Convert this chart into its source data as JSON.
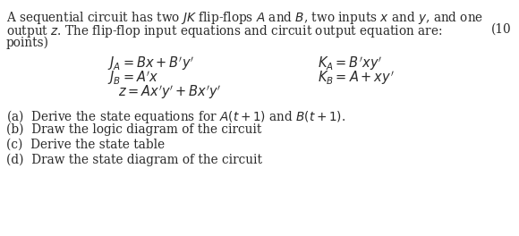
{
  "bg_color": "#ffffff",
  "text_color": "#2a2a2a",
  "intro_line1": "A sequential circuit has two $JK$ flip-flops $A$ and $B$, two inputs $x$ and $y$, and one",
  "intro_line2": "output $z$. The flip-flop input equations and circuit output equation are:",
  "intro_line2b": "(10",
  "intro_line3": "points)",
  "eq_JA": "$J_A =Bx + B'y'$",
  "eq_JB": "$J_B =A'x$",
  "eq_z": "$z =Ax'y' + Bx'y'$",
  "eq_KA": "$K_A =B'xy'$",
  "eq_KB": "$K_B =A + xy'$",
  "part_a": "(a)  Derive the state equations for $A(t+1)$ and $B(t+1)$.",
  "part_b": "(b)  Draw the logic diagram of the circuit",
  "part_c": "(c)  Derive the state table",
  "part_d": "(d)  Draw the state diagram of the circuit",
  "fontsize_body": 9.8,
  "fontsize_eq": 10.5,
  "fontsize_parts": 9.8
}
